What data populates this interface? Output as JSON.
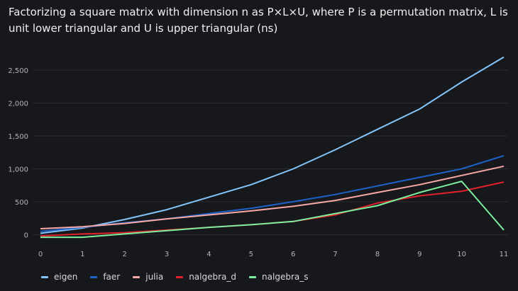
{
  "chart_data": {
    "type": "line",
    "title": "Factorizing a square matrix with dimension n as P×L×U, where P is a permutation matrix, L is unit lower triangular and U is upper triangular (ns)",
    "xlabel": "",
    "ylabel": "",
    "x": [
      0,
      1,
      2,
      3,
      4,
      5,
      6,
      7,
      8,
      9,
      10,
      11
    ],
    "x_ticks": [
      "0",
      "1",
      "2",
      "3",
      "4",
      "5",
      "6",
      "7",
      "8",
      "9",
      "10",
      "11"
    ],
    "y_ticks": [
      "0",
      "500",
      "1,000",
      "1,500",
      "2,000",
      "2,500"
    ],
    "y_tick_values": [
      0,
      500,
      1000,
      1500,
      2000,
      2500
    ],
    "xlim": [
      0,
      11
    ],
    "ylim": [
      -50,
      2900
    ],
    "grid": true,
    "legend_position": "bottom-left",
    "series": [
      {
        "name": "eigen",
        "color": "#83c5fb",
        "values": [
          20,
          100,
          230,
          380,
          570,
          760,
          1000,
          1290,
          1600,
          1910,
          2320,
          2700
        ]
      },
      {
        "name": "faer",
        "color": "#1d62c9",
        "values": [
          50,
          110,
          180,
          240,
          320,
          400,
          500,
          610,
          740,
          870,
          1000,
          1200
        ]
      },
      {
        "name": "julia",
        "color": "#f8a9a6",
        "values": [
          90,
          120,
          170,
          240,
          300,
          360,
          430,
          520,
          640,
          760,
          900,
          1040
        ]
      },
      {
        "name": "nalgebra_d",
        "color": "#e1212b",
        "values": [
          -20,
          10,
          30,
          70,
          110,
          150,
          200,
          300,
          480,
          590,
          660,
          800
        ]
      },
      {
        "name": "nalgebra_s",
        "color": "#7df09f",
        "values": [
          -40,
          -40,
          10,
          60,
          110,
          150,
          200,
          320,
          440,
          640,
          810,
          70
        ]
      }
    ]
  }
}
